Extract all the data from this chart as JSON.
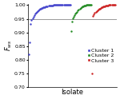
{
  "title": "",
  "xlabel": "Isolate",
  "ylabel": "$F_{ws}$",
  "ylim": [
    0.7,
    1.005
  ],
  "yticks": [
    0.7,
    0.75,
    0.8,
    0.85,
    0.9,
    0.95,
    1.0
  ],
  "hline": 0.95,
  "hline_color": "#999999",
  "cluster1_color": "#4444cc",
  "cluster2_color": "#228B22",
  "cluster3_color": "#cc2222",
  "cluster1_values": [
    0.82,
    0.865,
    0.93,
    0.945,
    0.952,
    0.958,
    0.963,
    0.968,
    0.972,
    0.975,
    0.978,
    0.981,
    0.983,
    0.985,
    0.987,
    0.989,
    0.99,
    0.991,
    0.992,
    0.993,
    0.994,
    0.995,
    0.996,
    0.997,
    0.997,
    0.998,
    0.999,
    0.999,
    0.999,
    1.0,
    1.0,
    1.0,
    1.0,
    1.0,
    1.0,
    1.0,
    1.0,
    1.0,
    1.0,
    1.0,
    1.0,
    1.0,
    1.0,
    1.0,
    1.0,
    1.0,
    1.0,
    1.0,
    1.0,
    1.0
  ],
  "cluster2_values": [
    0.905,
    0.94,
    0.952,
    0.958,
    0.963,
    0.968,
    0.972,
    0.976,
    0.98,
    0.984,
    0.987,
    0.99,
    0.992,
    0.994,
    0.996,
    0.997,
    0.998,
    0.999,
    1.0,
    1.0,
    1.0,
    1.0,
    1.0,
    1.0,
    1.0
  ],
  "cluster3_values": [
    0.752,
    0.96,
    0.966,
    0.971,
    0.975,
    0.978,
    0.981,
    0.983,
    0.985,
    0.987,
    0.989,
    0.991,
    0.992,
    0.994,
    0.995,
    0.996,
    0.997,
    0.998,
    0.999,
    0.999,
    1.0,
    1.0,
    1.0,
    1.0,
    1.0,
    1.0,
    1.0,
    1.0
  ],
  "marker_size": 3,
  "legend_fontsize": 4.5,
  "axis_fontsize": 6,
  "tick_fontsize": 4.5,
  "background_color": "#ffffff"
}
